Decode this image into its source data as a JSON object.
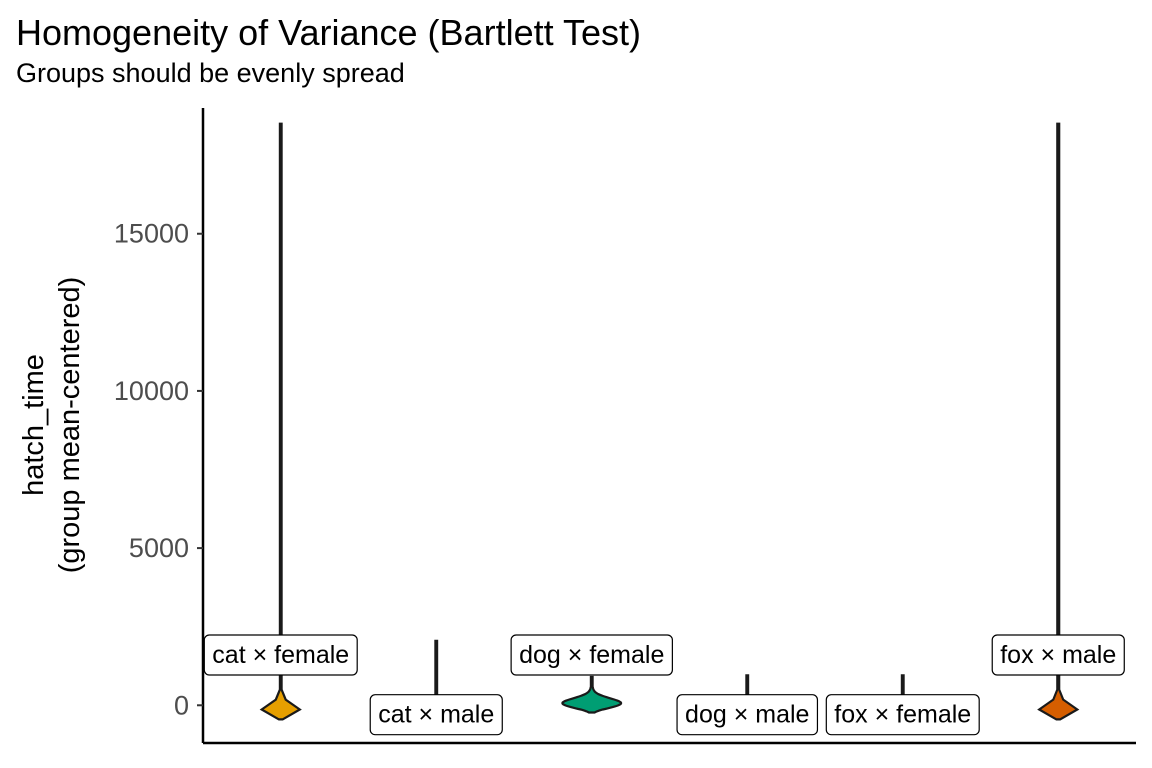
{
  "chart_data": {
    "type": "violin",
    "title": "Homogeneity of Variance (Bartlett Test)",
    "subtitle": "Groups should be evenly spread",
    "ylabel_lines": [
      "hatch_time",
      "(group mean-centered)"
    ],
    "xlabel": "",
    "ylim": [
      -1200,
      19000
    ],
    "yticks": [
      0,
      5000,
      10000,
      15000
    ],
    "grid": false,
    "legend": "none",
    "categories": [
      "cat × female",
      "cat × male",
      "dog × female",
      "dog × male",
      "fox × female",
      "fox × male"
    ],
    "groups": [
      {
        "label": "cat × female",
        "color": "#E69F00",
        "min": -450,
        "max": 18500,
        "bulk_top": 800,
        "max_halfwidth": 0.3,
        "label_y": 1600
      },
      {
        "label": "cat × male",
        "color": "#56B4E9",
        "min": -300,
        "max": 2050,
        "bulk_top": 800,
        "max_halfwidth": 0.03,
        "label_y": -300
      },
      {
        "label": "dog × female",
        "color": "#009E73",
        "min": -230,
        "max": 900,
        "bulk_top": 900,
        "max_halfwidth": 0.46,
        "label_y": 1600
      },
      {
        "label": "dog × male",
        "color": "#F0E442",
        "min": -150,
        "max": 950,
        "bulk_top": 500,
        "max_halfwidth": 0.04,
        "label_y": -300
      },
      {
        "label": "fox × female",
        "color": "#0072B2",
        "min": -150,
        "max": 950,
        "bulk_top": 500,
        "max_halfwidth": 0.03,
        "label_y": -300
      },
      {
        "label": "fox × male",
        "color": "#D55E00",
        "min": -450,
        "max": 18500,
        "bulk_top": 800,
        "max_halfwidth": 0.3,
        "label_y": 1600
      }
    ]
  }
}
